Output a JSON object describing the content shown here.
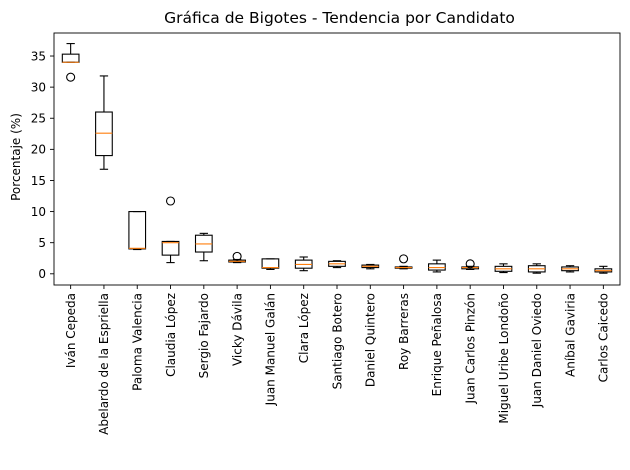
{
  "chart_data": {
    "type": "box",
    "title": "Gráfica de Bigotes - Tendencia por Candidato",
    "xlabel": "",
    "ylabel": "Porcentaje (%)",
    "ylim": [
      -1.8,
      38.7
    ],
    "yticks": [
      0,
      5,
      10,
      15,
      20,
      25,
      30,
      35
    ],
    "grid": false,
    "colors": {
      "box": "#000000",
      "median": "#ff7f0e",
      "background": "#ffffff"
    },
    "categories": [
      "Iván Cepeda",
      "Abelardo de la Espriella",
      "Paloma Valencia",
      "Claudia López",
      "Sergio Fajardo",
      "Vicky Dávila",
      "Juan Manuel Galán",
      "Clara López",
      "Santiago Botero",
      "Daniel Quintero",
      "Roy Barreras",
      "Enrique Peñalosa",
      "Juan Carlos Pinzón",
      "Miguel Uribe Londoño",
      "Juan Daniel Oviedo",
      "Aníbal Gaviria",
      "Carlos Caicedo"
    ],
    "boxes": [
      {
        "whisker_low": 34.0,
        "q1": 34.0,
        "median": 34.0,
        "q3": 35.3,
        "whisker_high": 37.0,
        "outliers": [
          31.6
        ]
      },
      {
        "whisker_low": 16.8,
        "q1": 19.0,
        "median": 22.6,
        "q3": 26.0,
        "whisker_high": 31.8,
        "outliers": []
      },
      {
        "whisker_low": 3.9,
        "q1": 4.0,
        "median": 4.1,
        "q3": 10.0,
        "whisker_high": 10.0,
        "outliers": []
      },
      {
        "whisker_low": 1.8,
        "q1": 3.0,
        "median": 5.0,
        "q3": 5.2,
        "whisker_high": 5.2,
        "outliers": [
          11.7
        ]
      },
      {
        "whisker_low": 2.1,
        "q1": 3.5,
        "median": 4.8,
        "q3": 6.2,
        "whisker_high": 6.5,
        "outliers": []
      },
      {
        "whisker_low": 1.8,
        "q1": 1.9,
        "median": 2.0,
        "q3": 2.2,
        "whisker_high": 2.3,
        "outliers": [
          2.8
        ]
      },
      {
        "whisker_low": 0.7,
        "q1": 0.9,
        "median": 1.0,
        "q3": 2.4,
        "whisker_high": 2.4,
        "outliers": []
      },
      {
        "whisker_low": 0.5,
        "q1": 0.9,
        "median": 1.5,
        "q3": 2.2,
        "whisker_high": 2.7,
        "outliers": []
      },
      {
        "whisker_low": 1.0,
        "q1": 1.2,
        "median": 1.6,
        "q3": 2.0,
        "whisker_high": 2.1,
        "outliers": []
      },
      {
        "whisker_low": 0.8,
        "q1": 1.0,
        "median": 1.2,
        "q3": 1.4,
        "whisker_high": 1.5,
        "outliers": []
      },
      {
        "whisker_low": 0.8,
        "q1": 0.9,
        "median": 1.0,
        "q3": 1.1,
        "whisker_high": 1.2,
        "outliers": [
          2.4
        ]
      },
      {
        "whisker_low": 0.3,
        "q1": 0.6,
        "median": 1.0,
        "q3": 1.6,
        "whisker_high": 2.2,
        "outliers": []
      },
      {
        "whisker_low": 0.7,
        "q1": 0.8,
        "median": 1.0,
        "q3": 1.1,
        "whisker_high": 1.2,
        "outliers": [
          1.6
        ]
      },
      {
        "whisker_low": 0.2,
        "q1": 0.4,
        "median": 0.8,
        "q3": 1.2,
        "whisker_high": 1.6,
        "outliers": []
      },
      {
        "whisker_low": 0.1,
        "q1": 0.3,
        "median": 0.8,
        "q3": 1.3,
        "whisker_high": 1.6,
        "outliers": []
      },
      {
        "whisker_low": 0.3,
        "q1": 0.5,
        "median": 0.8,
        "q3": 1.1,
        "whisker_high": 1.3,
        "outliers": []
      },
      {
        "whisker_low": 0.1,
        "q1": 0.3,
        "median": 0.5,
        "q3": 0.8,
        "whisker_high": 1.2,
        "outliers": []
      }
    ]
  }
}
